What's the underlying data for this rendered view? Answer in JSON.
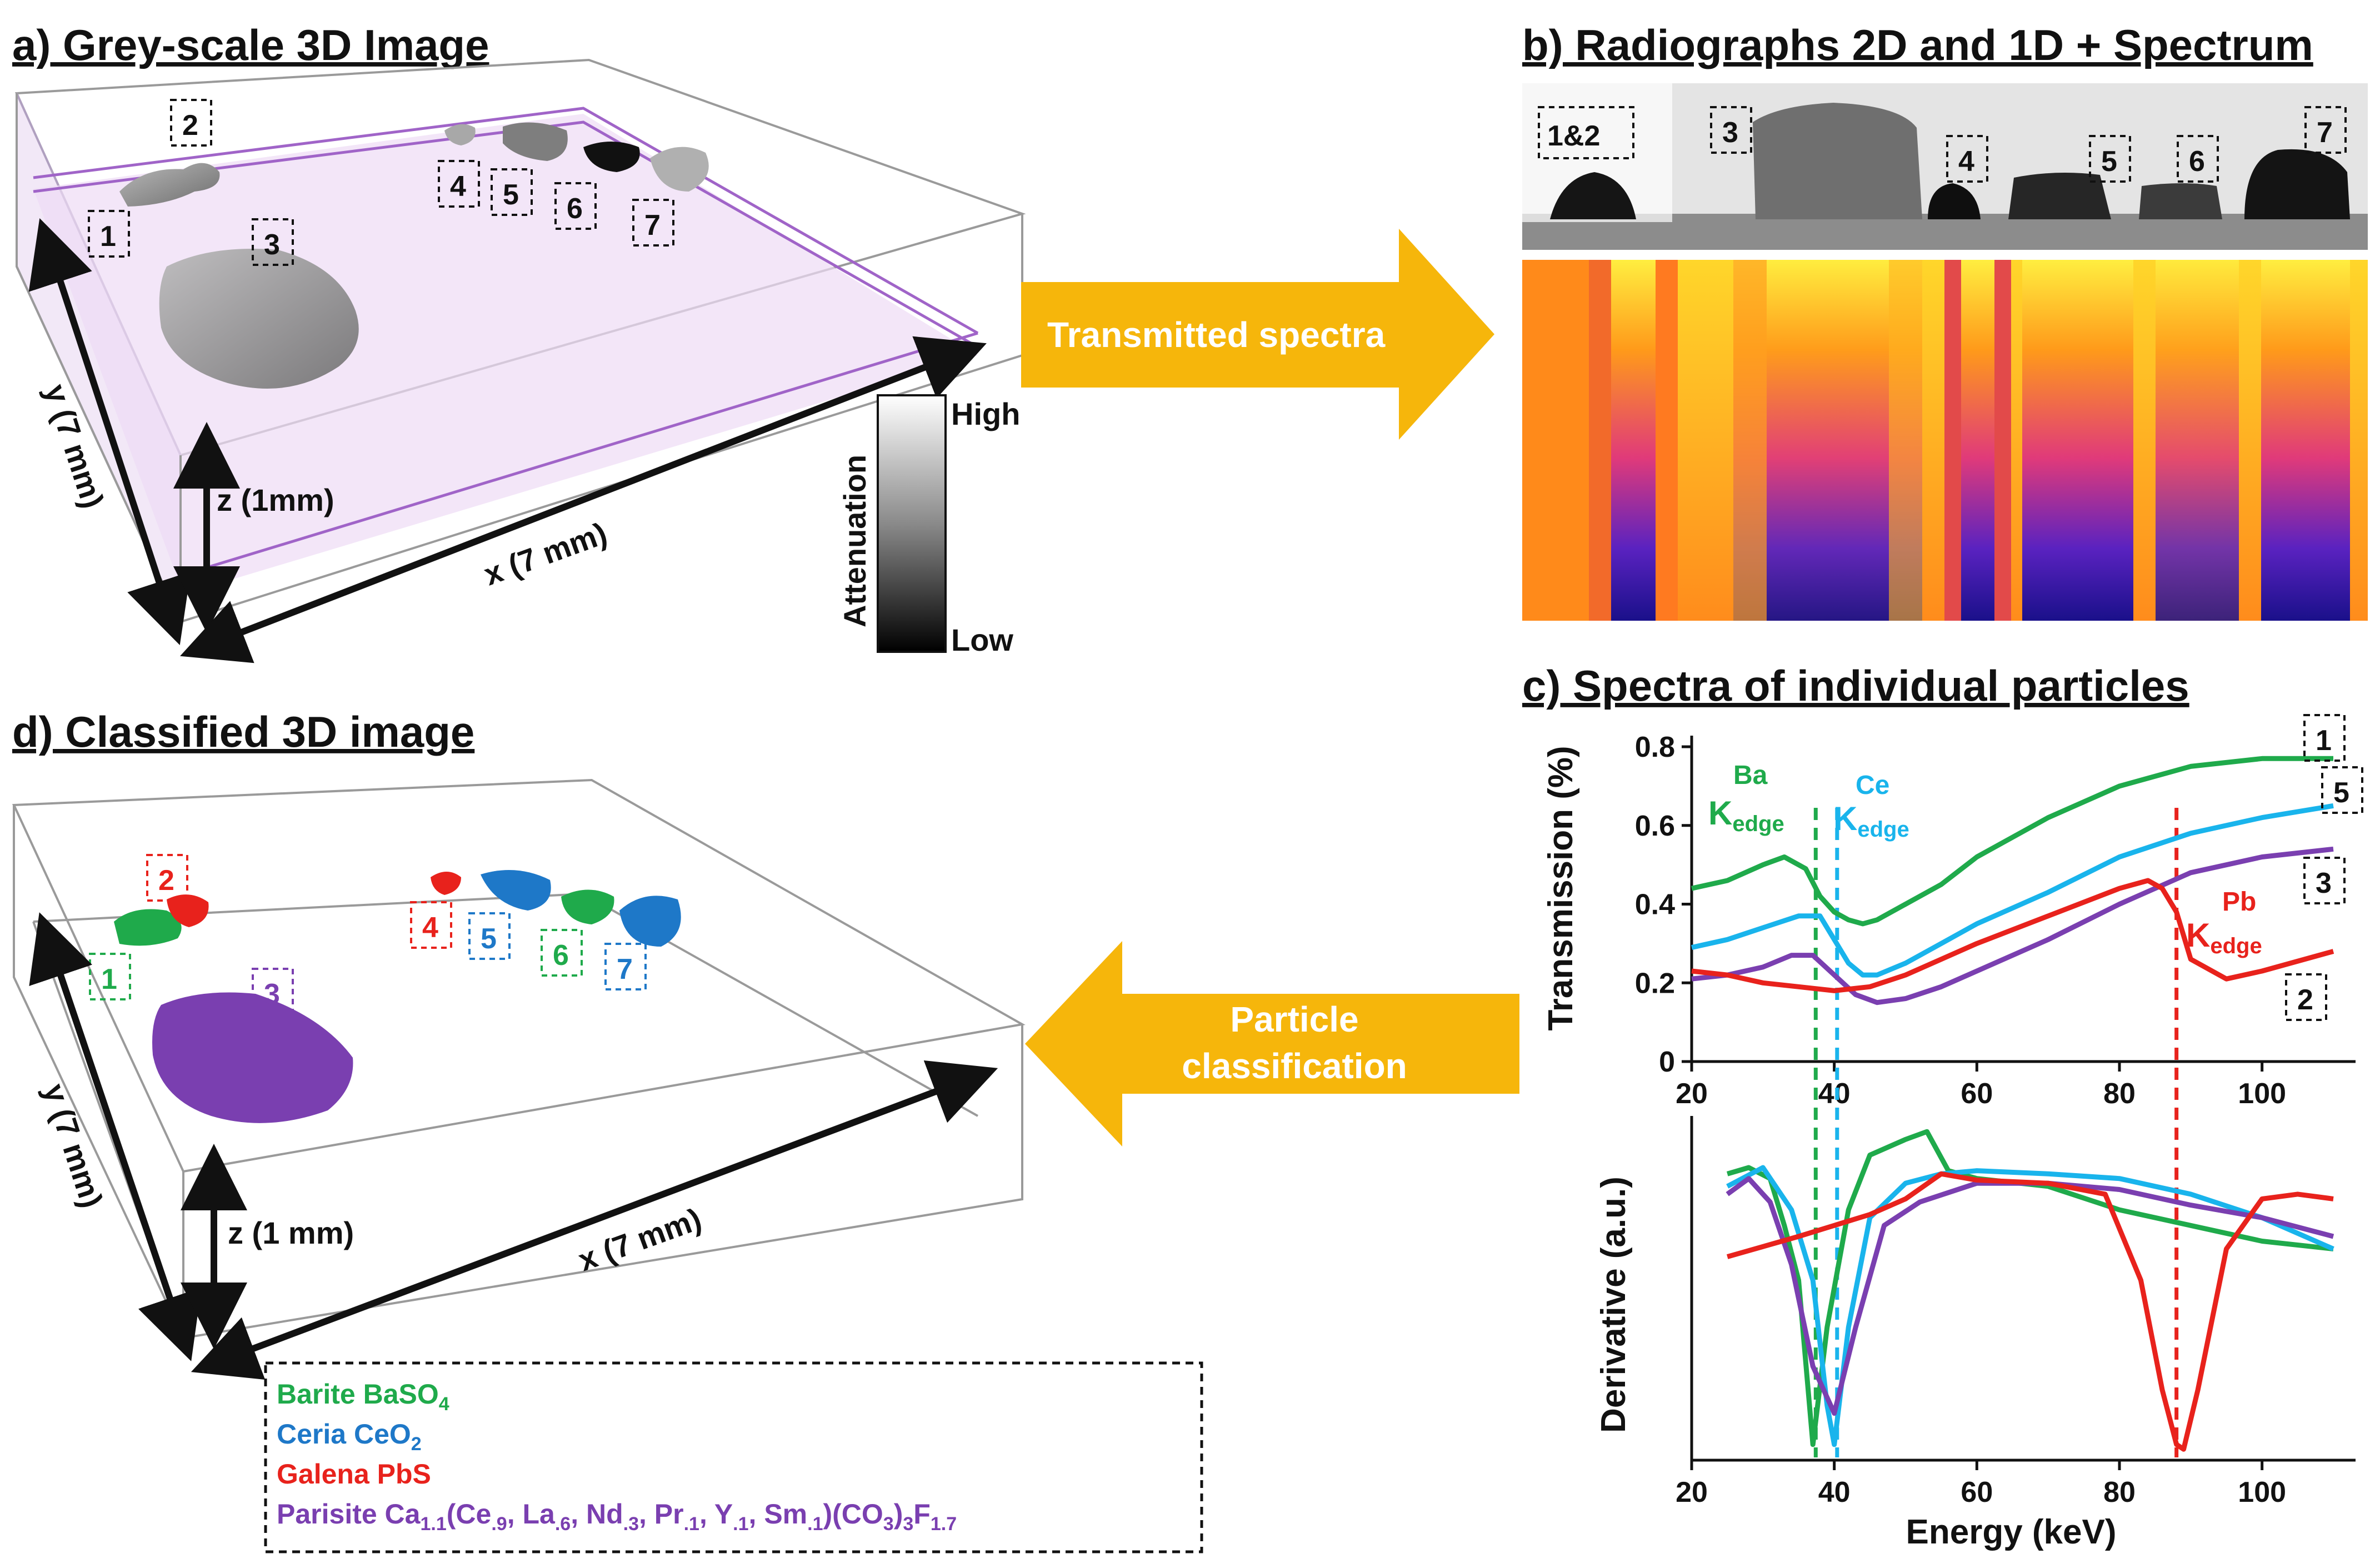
{
  "panels": {
    "a": {
      "title": "a) Grey-scale 3D Image",
      "axis_y": "y (7 mm)",
      "axis_z": "z (1mm)",
      "axis_x": "x (7 mm)",
      "colorbar": {
        "label": "Attenuation",
        "high": "High",
        "low": "Low"
      },
      "particles": [
        "1",
        "2",
        "3",
        "4",
        "5",
        "6",
        "7"
      ]
    },
    "b": {
      "title": "b) Radiographs 2D and 1D + Spectrum",
      "labels": [
        "1&2",
        "3",
        "4",
        "5",
        "6",
        "7"
      ]
    },
    "c": {
      "title": "c) Spectra of individual particles",
      "ylabel_top": "Transmission (%)",
      "ylabel_bottom": "Derivative (a.u.)",
      "xlabel": "Energy (keV)",
      "edges": {
        "ba_el": "Ba",
        "ce_el": "Ce",
        "pb_el": "Pb",
        "edge_sub": "edge",
        "k": "K"
      },
      "curve_labels": [
        "1",
        "5",
        "3",
        "2"
      ]
    },
    "d": {
      "title": "d) Classified 3D image",
      "axis_y": "y (7 mm)",
      "axis_z": "z (1 mm)",
      "axis_x": "x (7 mm)",
      "particles": [
        "1",
        "2",
        "3",
        "4",
        "5",
        "6",
        "7"
      ],
      "legend": {
        "barite": "Barite BaSO",
        "barite_sub": "4",
        "ceria": "Ceria CeO",
        "ceria_sub": "2",
        "galena": "Galena PbS",
        "parisite": "Parisite Ca",
        "parisite_full": "Parisite Ca1.1(Ce.9, La.6, Nd.3, Pr.1, Y.1, Sm.1)(CO3)3F1.7"
      }
    }
  },
  "arrows": {
    "right": "Transmitted spectra",
    "left_line1": "Particle",
    "left_line2": "classification"
  },
  "colors": {
    "barite": "#1faa4b",
    "ceria": "#1e78c8",
    "ceria_curve": "#19b4ec",
    "galena": "#e8221c",
    "parisite": "#7a3fb0",
    "arrow": "#f6b60b"
  },
  "chart_data": {
    "type": "line",
    "title": "c) Spectra of individual particles",
    "xlabel": "Energy (keV)",
    "ylabel": "Transmission (%)",
    "xlim": [
      20,
      110
    ],
    "ylim": [
      0,
      0.8
    ],
    "xticks": [
      20,
      40,
      60,
      80,
      100
    ],
    "yticks": [
      0,
      0.2,
      0.4,
      0.6,
      0.8
    ],
    "ytick_labels": [
      "0",
      "0.2",
      "0.4",
      "0.6",
      "0.8"
    ],
    "edges_keV": {
      "Ba": 37.4,
      "Ce": 40.4,
      "Pb": 88.0
    },
    "series": [
      {
        "name": "1 (Barite)",
        "color": "#1faa4b",
        "x": [
          20,
          25,
          30,
          33,
          36,
          38,
          40,
          42,
          44,
          46,
          50,
          55,
          60,
          70,
          80,
          90,
          100,
          110
        ],
        "y": [
          0.44,
          0.46,
          0.5,
          0.52,
          0.49,
          0.42,
          0.38,
          0.36,
          0.35,
          0.36,
          0.4,
          0.45,
          0.52,
          0.62,
          0.7,
          0.75,
          0.77,
          0.77
        ]
      },
      {
        "name": "5 (Ceria)",
        "color": "#19b4ec",
        "x": [
          20,
          25,
          30,
          35,
          38,
          40,
          42,
          44,
          46,
          50,
          55,
          60,
          70,
          80,
          90,
          100,
          110
        ],
        "y": [
          0.29,
          0.31,
          0.34,
          0.37,
          0.37,
          0.31,
          0.25,
          0.22,
          0.22,
          0.25,
          0.3,
          0.35,
          0.43,
          0.52,
          0.58,
          0.62,
          0.65
        ]
      },
      {
        "name": "3 (Parisite)",
        "color": "#7a3fb0",
        "x": [
          20,
          25,
          30,
          34,
          37,
          40,
          43,
          46,
          50,
          55,
          60,
          70,
          80,
          90,
          100,
          110
        ],
        "y": [
          0.21,
          0.22,
          0.24,
          0.27,
          0.27,
          0.22,
          0.17,
          0.15,
          0.16,
          0.19,
          0.23,
          0.31,
          0.4,
          0.48,
          0.52,
          0.54
        ]
      },
      {
        "name": "2 (Galena)",
        "color": "#e8221c",
        "x": [
          20,
          25,
          30,
          35,
          40,
          45,
          50,
          55,
          60,
          70,
          80,
          84,
          86,
          88,
          90,
          95,
          100,
          110
        ],
        "y": [
          0.23,
          0.22,
          0.2,
          0.19,
          0.18,
          0.19,
          0.22,
          0.26,
          0.3,
          0.37,
          0.44,
          0.46,
          0.44,
          0.38,
          0.26,
          0.21,
          0.23,
          0.28
        ]
      }
    ],
    "derivative": {
      "ylabel": "Derivative (a.u.)",
      "xlim": [
        20,
        110
      ],
      "series": [
        {
          "name": "1 (Barite)",
          "color": "#1faa4b",
          "x": [
            25,
            28,
            31,
            33,
            35,
            37,
            39,
            42,
            45,
            50,
            53,
            56,
            60,
            70,
            80,
            90,
            100,
            110
          ],
          "y": [
            0.78,
            0.82,
            0.75,
            0.45,
            0.1,
            -0.95,
            -0.2,
            0.55,
            0.9,
            1.0,
            1.05,
            0.8,
            0.75,
            0.7,
            0.55,
            0.45,
            0.35,
            0.3
          ]
        },
        {
          "name": "5 (Ceria)",
          "color": "#19b4ec",
          "x": [
            25,
            30,
            34,
            37,
            39,
            40,
            42,
            45,
            50,
            55,
            60,
            70,
            80,
            90,
            100,
            110
          ],
          "y": [
            0.7,
            0.82,
            0.55,
            0.1,
            -0.7,
            -0.95,
            -0.2,
            0.5,
            0.72,
            0.78,
            0.8,
            0.78,
            0.75,
            0.65,
            0.5,
            0.3
          ]
        },
        {
          "name": "3 (Parisite)",
          "color": "#7a3fb0",
          "x": [
            25,
            28,
            31,
            34,
            37,
            40,
            43,
            47,
            52,
            60,
            70,
            80,
            90,
            100,
            110
          ],
          "y": [
            0.65,
            0.75,
            0.6,
            0.2,
            -0.45,
            -0.75,
            -0.2,
            0.45,
            0.6,
            0.72,
            0.72,
            0.68,
            0.58,
            0.5,
            0.38
          ]
        },
        {
          "name": "2 (Galena)",
          "color": "#e8221c",
          "x": [
            25,
            35,
            45,
            50,
            55,
            60,
            70,
            78,
            83,
            86,
            88,
            89,
            91,
            95,
            100,
            105,
            110
          ],
          "y": [
            0.25,
            0.38,
            0.52,
            0.62,
            0.78,
            0.74,
            0.72,
            0.65,
            0.1,
            -0.6,
            -0.95,
            -0.98,
            -0.6,
            0.3,
            0.62,
            0.65,
            0.62
          ]
        }
      ]
    }
  }
}
